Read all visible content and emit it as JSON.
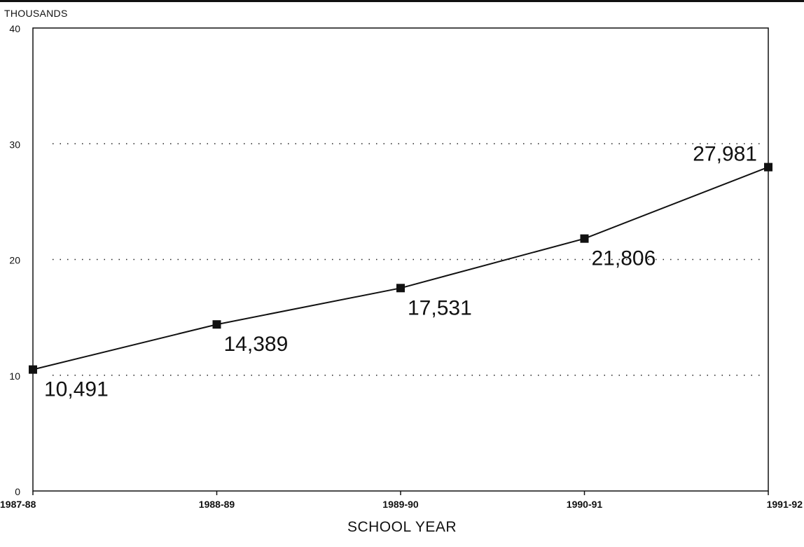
{
  "chart_data": {
    "type": "line",
    "title": "",
    "ylabel": "THOUSANDS",
    "xlabel": "SCHOOL YEAR",
    "categories": [
      "1987-88",
      "1988-89",
      "1989-90",
      "1990-91",
      "1991-92"
    ],
    "series": [
      {
        "values": [
          10.491,
          14.389,
          17.531,
          21.806,
          27.981
        ]
      }
    ],
    "data_labels": [
      "10,491",
      "14,389",
      "17,531",
      "21,806",
      "27,981"
    ],
    "ylim": [
      0,
      40
    ],
    "yticks": [
      0,
      10,
      20,
      30,
      40
    ],
    "grid": "dotted horizontal",
    "legend": "none",
    "line_color": "#111111"
  }
}
